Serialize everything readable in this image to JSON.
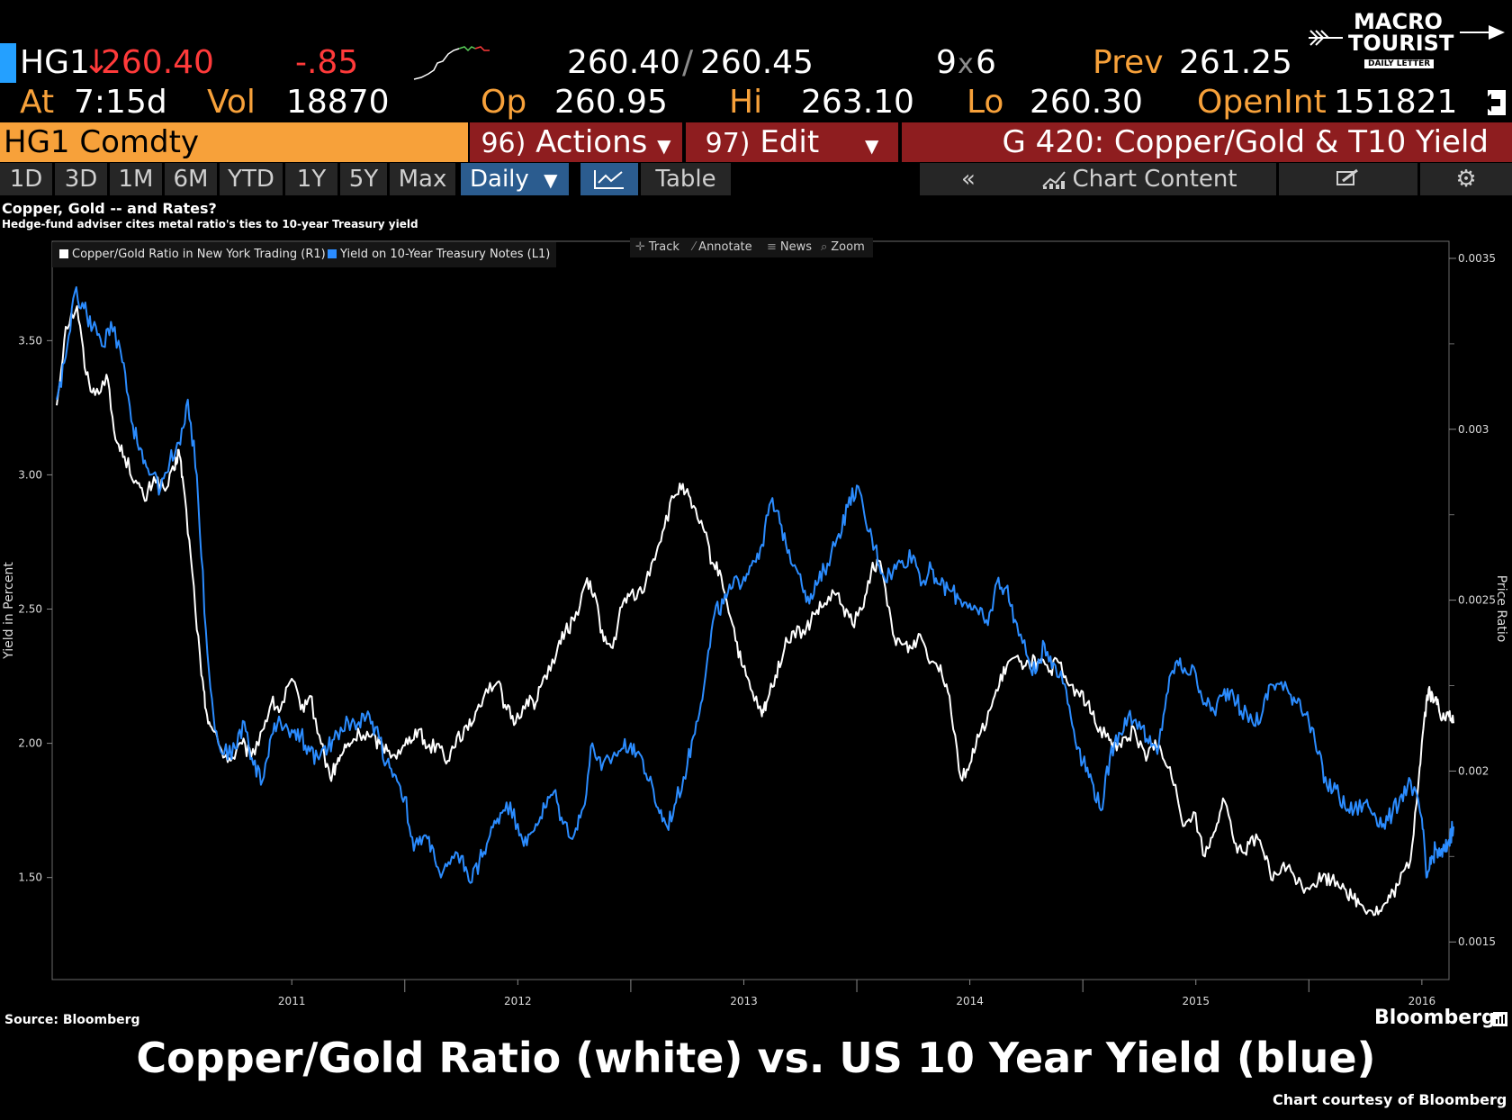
{
  "quote": {
    "ticker": "HG1",
    "arrow": "↓",
    "last": "260.40",
    "change": "-.85",
    "bid": "260.40",
    "slash": "/",
    "ask": "260.45",
    "size_bid": "9",
    "size_x": "x",
    "size_ask": "6",
    "prev_label": "Prev",
    "prev": "261.25",
    "at_label": "At",
    "at_time": "7:15d",
    "vol_label": "Vol",
    "vol": "18870",
    "op_label": "Op",
    "op": "260.95",
    "hi_label": "Hi",
    "hi": "263.10",
    "lo_label": "Lo",
    "lo": "260.30",
    "oi_label": "OpenInt",
    "oi": "151821"
  },
  "logo": {
    "line1": "MACRO",
    "line2": "TOURIST",
    "line3": "DAILY LETTER"
  },
  "function_bar": {
    "security": "HG1 Comdty",
    "actions_num": "96)",
    "actions": "Actions",
    "edit_num": "97)",
    "edit": "Edit",
    "title": "G 420: Copper/Gold & T10 Yield"
  },
  "toolbar": {
    "ranges": [
      "1D",
      "3D",
      "1M",
      "6M",
      "YTD",
      "1Y",
      "5Y",
      "Max"
    ],
    "frequency": "Daily",
    "table": "Table",
    "chart_content": "Chart Content"
  },
  "chart_heading": {
    "title": "Copper, Gold -- and Rates?",
    "subtitle": "Hedge-fund adviser cites metal ratio's ties to 10-year Treasury yield"
  },
  "chart_tools": [
    "Track",
    "Annotate",
    "News",
    "Zoom"
  ],
  "chart_data": {
    "type": "line",
    "series": [
      {
        "name": "Copper/Gold Ratio in New York Trading (R1)",
        "axis": "right",
        "color": "#ffffff",
        "x": [
          2010.46,
          2010.5,
          2010.55,
          2010.59,
          2010.63,
          2010.68,
          2010.72,
          2010.76,
          2010.81,
          2010.85,
          2010.89,
          2010.94,
          2010.98,
          2011.0,
          2011.02,
          2011.06,
          2011.1,
          2011.12,
          2011.15,
          2011.19,
          2011.23,
          2011.28,
          2011.32,
          2011.37,
          2011.41,
          2011.45,
          2011.5,
          2011.54,
          2011.58,
          2011.63,
          2011.67,
          2011.7,
          2011.73,
          2011.76,
          2011.8,
          2011.85,
          2011.89,
          2011.93,
          2011.98,
          2012.02,
          2012.06,
          2012.1,
          2012.15,
          2012.19,
          2012.23,
          2012.28,
          2012.32,
          2012.36,
          2012.41,
          2012.45,
          2012.49,
          2012.54,
          2012.58,
          2012.62,
          2012.67,
          2012.71,
          2012.75,
          2012.8,
          2012.84,
          2012.88,
          2012.92,
          2012.96,
          2013.0,
          2013.05,
          2013.1,
          2013.14,
          2013.19,
          2013.23,
          2013.27,
          2013.32,
          2013.36,
          2013.4,
          2013.45,
          2013.49,
          2013.53,
          2013.58,
          2013.6,
          2013.64,
          2013.68,
          2013.72,
          2013.77,
          2013.81,
          2013.85,
          2013.9,
          2013.94,
          2013.98,
          2014.03,
          2014.07,
          2014.11,
          2014.16,
          2014.2,
          2014.24,
          2014.28,
          2014.33,
          2014.37,
          2014.41,
          2014.46,
          2014.5,
          2014.54,
          2014.59,
          2014.63,
          2014.67,
          2014.72,
          2014.76,
          2014.8,
          2014.85,
          2014.89,
          2014.93,
          2014.98,
          2015.02,
          2015.06,
          2015.11,
          2015.15,
          2015.19,
          2015.23,
          2015.28,
          2015.32,
          2015.36,
          2015.41,
          2015.45,
          2015.49,
          2015.54,
          2015.58,
          2015.62,
          2015.67,
          2015.71,
          2015.75,
          2015.8,
          2015.84,
          2015.88,
          2015.93,
          2015.97,
          2016.02,
          2016.06,
          2016.1,
          2016.15,
          2016.19,
          2016.23,
          2016.28,
          2016.32,
          2016.36,
          2016.4,
          2016.45,
          2016.49,
          2016.51,
          2016.53,
          2016.55,
          2016.57,
          2016.59,
          2016.62,
          2016.64
        ],
        "values": [
          0.00307,
          0.0033,
          0.00336,
          0.00316,
          0.0031,
          0.00316,
          0.00297,
          0.00292,
          0.00285,
          0.00279,
          0.00286,
          0.00282,
          0.00288,
          0.00294,
          0.00284,
          0.00258,
          0.00228,
          0.00218,
          0.00212,
          0.00206,
          0.00203,
          0.00208,
          0.00204,
          0.00212,
          0.0022,
          0.00218,
          0.00227,
          0.00218,
          0.00222,
          0.00208,
          0.00198,
          0.00202,
          0.00206,
          0.00208,
          0.00211,
          0.0021,
          0.00208,
          0.00206,
          0.00205,
          0.0021,
          0.00212,
          0.00207,
          0.00208,
          0.00203,
          0.0021,
          0.00212,
          0.00218,
          0.00224,
          0.00226,
          0.00218,
          0.00214,
          0.00221,
          0.0022,
          0.00228,
          0.00234,
          0.00241,
          0.00244,
          0.00255,
          0.00252,
          0.00238,
          0.00236,
          0.00248,
          0.00252,
          0.00252,
          0.00262,
          0.0027,
          0.0028,
          0.00284,
          0.00277,
          0.00271,
          0.00261,
          0.00257,
          0.00243,
          0.00231,
          0.00224,
          0.00216,
          0.0022,
          0.00228,
          0.00236,
          0.00241,
          0.0024,
          0.00246,
          0.00248,
          0.00252,
          0.00248,
          0.00243,
          0.00248,
          0.00261,
          0.00259,
          0.0024,
          0.00237,
          0.00236,
          0.0024,
          0.00232,
          0.00231,
          0.00222,
          0.00198,
          0.00202,
          0.0021,
          0.00218,
          0.00225,
          0.00232,
          0.00232,
          0.00232,
          0.00232,
          0.00229,
          0.00232,
          0.00226,
          0.00223,
          0.0022,
          0.00213,
          0.00211,
          0.00206,
          0.0021,
          0.00212,
          0.00203,
          0.00209,
          0.00203,
          0.00196,
          0.00184,
          0.00188,
          0.00175,
          0.00182,
          0.00192,
          0.00179,
          0.00176,
          0.00181,
          0.00176,
          0.00168,
          0.00172,
          0.0017,
          0.00166,
          0.00167,
          0.00169,
          0.00168,
          0.00167,
          0.00163,
          0.00161,
          0.00159,
          0.00159,
          0.00163,
          0.00167,
          0.00174,
          0.00201,
          0.00215,
          0.00224,
          0.0022,
          0.00221,
          0.00215,
          0.00216,
          0.00214
        ]
      },
      {
        "name": "Yield on 10-Year Treasury Notes (L1)",
        "axis": "left",
        "color": "#2b8cff",
        "x": [
          2010.46,
          2010.5,
          2010.54,
          2010.58,
          2010.62,
          2010.66,
          2010.7,
          2010.75,
          2010.79,
          2010.83,
          2010.87,
          2010.92,
          2010.96,
          2011.0,
          2011.04,
          2011.08,
          2011.12,
          2011.16,
          2011.2,
          2011.25,
          2011.29,
          2011.33,
          2011.37,
          2011.41,
          2011.45,
          2011.5,
          2011.54,
          2011.58,
          2011.62,
          2011.66,
          2011.7,
          2011.75,
          2011.79,
          2011.83,
          2011.87,
          2011.92,
          2011.96,
          2012.0,
          2012.04,
          2012.08,
          2012.12,
          2012.16,
          2012.2,
          2012.25,
          2012.29,
          2012.33,
          2012.37,
          2012.41,
          2012.45,
          2012.5,
          2012.54,
          2012.58,
          2012.62,
          2012.66,
          2012.7,
          2012.75,
          2012.79,
          2012.83,
          2012.87,
          2012.92,
          2012.96,
          2013.0,
          2013.04,
          2013.08,
          2013.12,
          2013.16,
          2013.2,
          2013.25,
          2013.29,
          2013.33,
          2013.37,
          2013.41,
          2013.45,
          2013.5,
          2013.54,
          2013.58,
          2013.62,
          2013.66,
          2013.7,
          2013.75,
          2013.79,
          2013.83,
          2013.87,
          2013.92,
          2013.96,
          2014.0,
          2014.04,
          2014.08,
          2014.12,
          2014.16,
          2014.2,
          2014.25,
          2014.29,
          2014.33,
          2014.37,
          2014.41,
          2014.45,
          2014.5,
          2014.54,
          2014.58,
          2014.62,
          2014.66,
          2014.7,
          2014.75,
          2014.79,
          2014.83,
          2014.87,
          2014.92,
          2014.96,
          2015.0,
          2015.04,
          2015.08,
          2015.12,
          2015.16,
          2015.2,
          2015.25,
          2015.29,
          2015.33,
          2015.37,
          2015.41,
          2015.45,
          2015.5,
          2015.54,
          2015.58,
          2015.62,
          2015.66,
          2015.7,
          2015.75,
          2015.79,
          2015.83,
          2015.87,
          2015.92,
          2015.96,
          2016.0,
          2016.04,
          2016.08,
          2016.12,
          2016.16,
          2016.2,
          2016.25,
          2016.29,
          2016.33,
          2016.37,
          2016.41,
          2016.45,
          2016.5,
          2016.52,
          2016.54,
          2016.56,
          2016.58,
          2016.6,
          2016.62,
          2016.64
        ],
        "values": [
          3.28,
          3.44,
          3.68,
          3.62,
          3.55,
          3.48,
          3.57,
          3.42,
          3.2,
          3.1,
          3.0,
          2.95,
          3.05,
          3.12,
          3.28,
          3.0,
          2.42,
          2.05,
          1.96,
          1.98,
          2.08,
          1.92,
          1.86,
          2.03,
          2.08,
          2.05,
          2.03,
          1.97,
          1.94,
          1.98,
          2.04,
          2.08,
          2.07,
          2.1,
          2.06,
          1.93,
          1.88,
          1.8,
          1.6,
          1.65,
          1.62,
          1.5,
          1.55,
          1.58,
          1.48,
          1.56,
          1.64,
          1.72,
          1.78,
          1.7,
          1.62,
          1.7,
          1.76,
          1.82,
          1.7,
          1.66,
          1.76,
          2.0,
          1.9,
          1.95,
          1.98,
          2.0,
          1.96,
          1.86,
          1.76,
          1.69,
          1.78,
          1.92,
          2.08,
          2.25,
          2.48,
          2.52,
          2.58,
          2.62,
          2.68,
          2.74,
          2.9,
          2.82,
          2.72,
          2.63,
          2.52,
          2.6,
          2.67,
          2.78,
          2.88,
          2.96,
          2.82,
          2.73,
          2.62,
          2.64,
          2.68,
          2.7,
          2.6,
          2.65,
          2.59,
          2.57,
          2.54,
          2.52,
          2.48,
          2.44,
          2.6,
          2.58,
          2.46,
          2.33,
          2.26,
          2.37,
          2.3,
          2.22,
          2.05,
          1.93,
          1.86,
          1.75,
          1.95,
          2.04,
          2.1,
          2.08,
          2.0,
          1.96,
          2.18,
          2.3,
          2.28,
          2.26,
          2.15,
          2.12,
          2.18,
          2.2,
          2.12,
          2.08,
          2.1,
          2.22,
          2.22,
          2.18,
          2.16,
          2.08,
          1.96,
          1.84,
          1.83,
          1.76,
          1.75,
          1.78,
          1.74,
          1.7,
          1.74,
          1.81,
          1.86,
          1.72,
          1.5,
          1.55,
          1.61,
          1.58,
          1.6,
          1.64,
          1.69
        ]
      }
    ],
    "x_ticks": [
      "2011",
      "2012",
      "2013",
      "2014",
      "2015",
      "2016"
    ],
    "x_range": [
      2010.44,
      2016.62
    ],
    "y_left": {
      "label": "Yield in Percent",
      "ticks": [
        "1.50",
        "2.00",
        "2.50",
        "3.00",
        "3.50"
      ],
      "range": [
        1.12,
        3.87
      ]
    },
    "y_right": {
      "label": "Price Ratio",
      "ticks": [
        "0.0015",
        "0.002",
        "0.0025",
        "0.003",
        "0.0035"
      ],
      "range": [
        0.00139,
        0.00355
      ]
    }
  },
  "footer": {
    "source": "Source: Bloomberg",
    "brand": "Bloomberg",
    "caption": "Copper/Gold Ratio (white) vs. US 10 Year Yield (blue)",
    "courtesy": "Chart courtesy of Bloomberg"
  }
}
